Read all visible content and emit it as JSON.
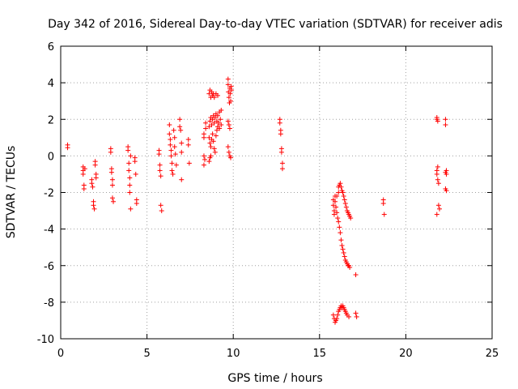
{
  "chart_data": {
    "type": "scatter",
    "title": "Day 342 of 2016, Sidereal Day-to-day VTEC variation (SDTVAR) for receiver adis",
    "xlabel": "GPS time / hours",
    "ylabel": "SDTVAR / TECUs",
    "xlim": [
      0,
      25
    ],
    "ylim": [
      -10,
      6
    ],
    "xticks": [
      0,
      5,
      10,
      15,
      20,
      25
    ],
    "yticks": [
      -10,
      -8,
      -6,
      -4,
      -2,
      0,
      2,
      4,
      6
    ],
    "grid": true,
    "marker": "+",
    "color": "#ff0000",
    "series": [
      {
        "name": "SDTVAR",
        "points": [
          [
            0.4,
            0.6
          ],
          [
            0.4,
            0.45
          ],
          [
            1.3,
            -0.6
          ],
          [
            1.3,
            -0.8
          ],
          [
            1.3,
            -1.0
          ],
          [
            1.35,
            -1.6
          ],
          [
            1.35,
            -1.8
          ],
          [
            1.4,
            -0.7
          ],
          [
            1.8,
            -1.3
          ],
          [
            1.8,
            -1.5
          ],
          [
            1.85,
            -1.7
          ],
          [
            1.9,
            -2.5
          ],
          [
            1.9,
            -2.7
          ],
          [
            1.95,
            -2.9
          ],
          [
            2.0,
            -0.3
          ],
          [
            2.0,
            -0.5
          ],
          [
            2.05,
            -1.0
          ],
          [
            2.05,
            -1.2
          ],
          [
            2.9,
            0.4
          ],
          [
            2.9,
            0.2
          ],
          [
            2.95,
            -0.7
          ],
          [
            2.95,
            -0.9
          ],
          [
            3.0,
            -1.3
          ],
          [
            3.0,
            -1.6
          ],
          [
            3.0,
            -2.3
          ],
          [
            3.05,
            -2.5
          ],
          [
            3.9,
            0.5
          ],
          [
            3.9,
            0.3
          ],
          [
            3.95,
            -0.4
          ],
          [
            3.95,
            -0.8
          ],
          [
            4.0,
            -1.2
          ],
          [
            4.0,
            -1.6
          ],
          [
            4.0,
            -2.0
          ],
          [
            4.05,
            -2.9
          ],
          [
            4.05,
            0.0
          ],
          [
            4.3,
            -0.1
          ],
          [
            4.3,
            -0.3
          ],
          [
            4.35,
            -1.0
          ],
          [
            4.4,
            -2.4
          ],
          [
            4.4,
            -2.6
          ],
          [
            5.7,
            0.3
          ],
          [
            5.7,
            0.1
          ],
          [
            5.75,
            -0.5
          ],
          [
            5.75,
            -0.8
          ],
          [
            5.8,
            -1.1
          ],
          [
            5.8,
            -2.7
          ],
          [
            5.85,
            -3.0
          ],
          [
            6.3,
            1.7
          ],
          [
            6.3,
            1.2
          ],
          [
            6.35,
            0.9
          ],
          [
            6.35,
            0.6
          ],
          [
            6.4,
            0.3
          ],
          [
            6.4,
            0.0
          ],
          [
            6.45,
            -0.4
          ],
          [
            6.45,
            -0.8
          ],
          [
            6.5,
            -1.0
          ],
          [
            6.55,
            1.4
          ],
          [
            6.6,
            1.0
          ],
          [
            6.6,
            0.5
          ],
          [
            6.65,
            0.1
          ],
          [
            6.7,
            -0.5
          ],
          [
            6.9,
            2.0
          ],
          [
            6.9,
            1.6
          ],
          [
            6.95,
            1.4
          ],
          [
            7.0,
            0.7
          ],
          [
            7.0,
            0.2
          ],
          [
            7.0,
            -1.3
          ],
          [
            7.4,
            0.9
          ],
          [
            7.4,
            0.6
          ],
          [
            7.45,
            -0.4
          ],
          [
            8.3,
            1.2
          ],
          [
            8.3,
            1.0
          ],
          [
            8.3,
            0.0
          ],
          [
            8.3,
            -0.5
          ],
          [
            8.35,
            -0.2
          ],
          [
            8.4,
            1.8
          ],
          [
            8.4,
            1.5
          ],
          [
            8.6,
            3.4
          ],
          [
            8.65,
            3.6
          ],
          [
            8.7,
            3.2
          ],
          [
            8.75,
            3.5
          ],
          [
            8.8,
            3.3
          ],
          [
            8.85,
            3.4
          ],
          [
            8.9,
            3.2
          ],
          [
            9.0,
            3.4
          ],
          [
            9.1,
            3.3
          ],
          [
            8.6,
            1.6
          ],
          [
            8.65,
            1.9
          ],
          [
            8.7,
            2.1
          ],
          [
            8.75,
            1.7
          ],
          [
            8.8,
            2.0
          ],
          [
            8.85,
            2.2
          ],
          [
            8.9,
            1.8
          ],
          [
            8.95,
            2.1
          ],
          [
            9.0,
            2.3
          ],
          [
            9.05,
            1.9
          ],
          [
            9.1,
            2.2
          ],
          [
            9.2,
            2.4
          ],
          [
            9.3,
            2.5
          ],
          [
            8.6,
            1.0
          ],
          [
            8.65,
            0.7
          ],
          [
            8.7,
            0.5
          ],
          [
            8.75,
            0.9
          ],
          [
            8.8,
            1.2
          ],
          [
            8.85,
            0.8
          ],
          [
            8.9,
            0.4
          ],
          [
            8.95,
            0.2
          ],
          [
            9.0,
            1.1
          ],
          [
            9.05,
            1.4
          ],
          [
            9.1,
            1.6
          ],
          [
            9.15,
            1.8
          ],
          [
            9.2,
            1.5
          ],
          [
            9.25,
            2.0
          ],
          [
            9.3,
            1.7
          ],
          [
            8.6,
            -0.3
          ],
          [
            8.65,
            -0.1
          ],
          [
            8.7,
            0.0
          ],
          [
            9.7,
            4.2
          ],
          [
            9.7,
            3.9
          ],
          [
            9.72,
            3.5
          ],
          [
            9.75,
            3.2
          ],
          [
            9.78,
            2.9
          ],
          [
            9.8,
            3.7
          ],
          [
            9.82,
            3.4
          ],
          [
            9.85,
            3.0
          ],
          [
            9.88,
            3.8
          ],
          [
            9.9,
            3.6
          ],
          [
            9.7,
            1.9
          ],
          [
            9.75,
            1.7
          ],
          [
            9.8,
            1.5
          ],
          [
            9.7,
            0.5
          ],
          [
            9.75,
            0.2
          ],
          [
            9.8,
            0.0
          ],
          [
            9.85,
            -0.1
          ],
          [
            12.7,
            2.0
          ],
          [
            12.7,
            1.8
          ],
          [
            12.75,
            1.4
          ],
          [
            12.75,
            1.2
          ],
          [
            12.8,
            0.4
          ],
          [
            12.8,
            0.2
          ],
          [
            12.85,
            -0.4
          ],
          [
            12.85,
            -0.7
          ],
          [
            15.8,
            -2.4
          ],
          [
            15.8,
            -2.7
          ],
          [
            15.85,
            -3.0
          ],
          [
            15.85,
            -3.2
          ],
          [
            15.9,
            -2.2
          ],
          [
            15.9,
            -2.5
          ],
          [
            15.95,
            -2.8
          ],
          [
            16.0,
            -2.2
          ],
          [
            16.0,
            -3.1
          ],
          [
            16.05,
            -3.4
          ],
          [
            16.1,
            -2.0
          ],
          [
            16.1,
            -3.6
          ],
          [
            16.15,
            -3.9
          ],
          [
            16.2,
            -4.2
          ],
          [
            16.25,
            -4.6
          ],
          [
            16.3,
            -4.9
          ],
          [
            16.35,
            -5.1
          ],
          [
            16.4,
            -5.3
          ],
          [
            16.45,
            -5.5
          ],
          [
            16.5,
            -5.7
          ],
          [
            16.55,
            -5.8
          ],
          [
            16.6,
            -5.9
          ],
          [
            16.65,
            -6.0
          ],
          [
            16.7,
            -6.0
          ],
          [
            16.75,
            -6.1
          ],
          [
            16.1,
            -1.7
          ],
          [
            16.15,
            -1.6
          ],
          [
            16.2,
            -1.5
          ],
          [
            16.25,
            -1.7
          ],
          [
            16.3,
            -1.9
          ],
          [
            16.35,
            -2.0
          ],
          [
            16.4,
            -2.2
          ],
          [
            16.45,
            -2.4
          ],
          [
            16.5,
            -2.6
          ],
          [
            16.55,
            -2.8
          ],
          [
            16.6,
            -3.0
          ],
          [
            16.65,
            -3.1
          ],
          [
            16.7,
            -3.2
          ],
          [
            16.75,
            -3.3
          ],
          [
            16.8,
            -3.4
          ],
          [
            15.8,
            -8.7
          ],
          [
            15.85,
            -8.9
          ],
          [
            15.9,
            -9.1
          ],
          [
            15.95,
            -9.0
          ],
          [
            16.0,
            -8.9
          ],
          [
            16.05,
            -8.7
          ],
          [
            16.1,
            -8.5
          ],
          [
            16.15,
            -8.4
          ],
          [
            16.2,
            -8.3
          ],
          [
            16.25,
            -8.2
          ],
          [
            16.3,
            -8.3
          ],
          [
            16.35,
            -8.2
          ],
          [
            16.4,
            -8.3
          ],
          [
            16.45,
            -8.4
          ],
          [
            16.5,
            -8.5
          ],
          [
            16.55,
            -8.6
          ],
          [
            16.6,
            -8.7
          ],
          [
            16.7,
            -8.8
          ],
          [
            17.1,
            -6.5
          ],
          [
            17.1,
            -8.6
          ],
          [
            17.15,
            -8.8
          ],
          [
            18.7,
            -2.4
          ],
          [
            18.7,
            -2.6
          ],
          [
            18.75,
            -3.2
          ],
          [
            21.8,
            2.0
          ],
          [
            21.8,
            2.1
          ],
          [
            21.85,
            1.9
          ],
          [
            21.8,
            -0.8
          ],
          [
            21.8,
            -1.0
          ],
          [
            21.85,
            -0.6
          ],
          [
            21.85,
            -1.3
          ],
          [
            21.9,
            -1.5
          ],
          [
            21.9,
            -2.7
          ],
          [
            21.95,
            -2.9
          ],
          [
            21.8,
            -3.2
          ],
          [
            22.3,
            2.0
          ],
          [
            22.3,
            1.7
          ],
          [
            22.3,
            -0.9
          ],
          [
            22.35,
            -0.8
          ],
          [
            22.35,
            -1.0
          ],
          [
            22.3,
            -1.8
          ],
          [
            22.35,
            -1.9
          ]
        ]
      }
    ]
  }
}
